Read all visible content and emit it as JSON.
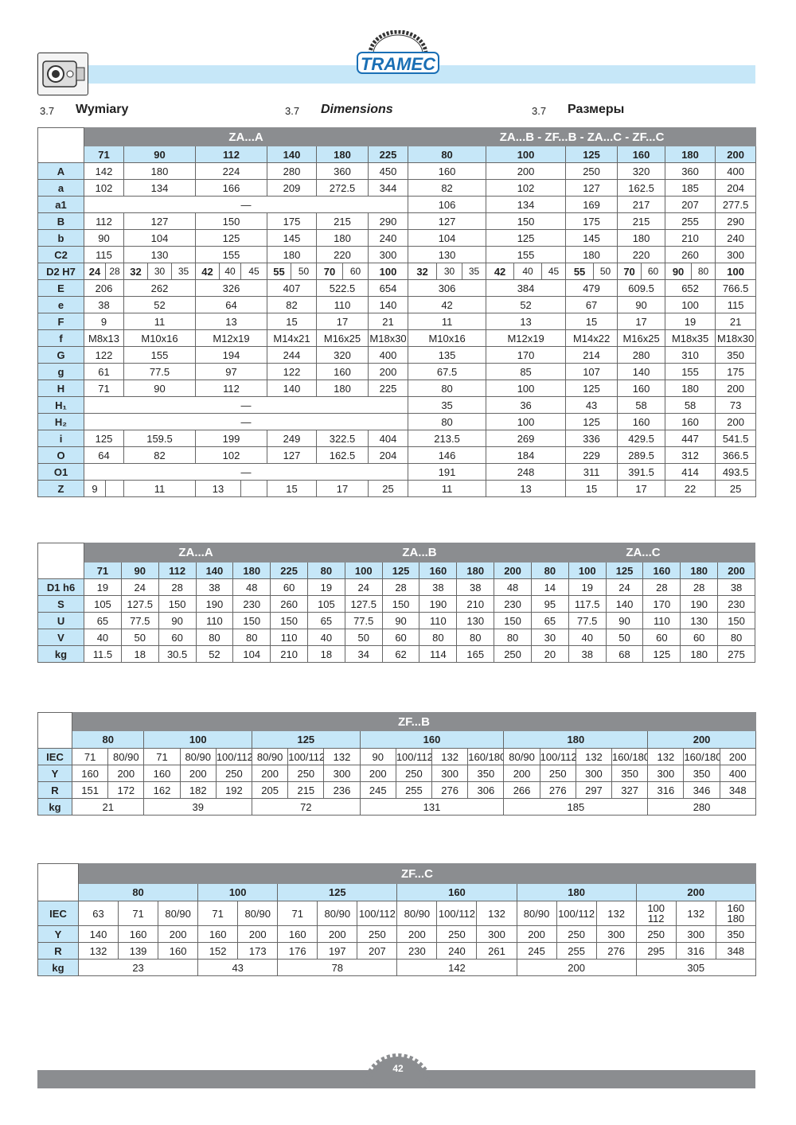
{
  "header": {
    "brand": "TRAMEC",
    "section_number": "3.7",
    "title_pl": "Wymiary",
    "title_en": "Dimensions",
    "title_ru": "Размеры"
  },
  "colors": {
    "header_gray": "#8b8d90",
    "light_blue": "#c6e7f8",
    "brand_blue": "#1a6fb5"
  },
  "table1": {
    "left_title": "ZA...A",
    "right_title": "ZA...B - ZF...B - ZA...C - ZF...C",
    "left_sizes": [
      "71",
      "90",
      "112",
      "140",
      "180",
      "225"
    ],
    "right_sizes": [
      "80",
      "100",
      "125",
      "160",
      "180",
      "200"
    ],
    "rows": [
      {
        "label": "A",
        "left": [
          "142",
          "180",
          "224",
          "280",
          "360",
          "450"
        ],
        "right": [
          "160",
          "200",
          "250",
          "320",
          "360",
          "400"
        ]
      },
      {
        "label": "a",
        "left": [
          "102",
          "134",
          "166",
          "209",
          "272.5",
          "344"
        ],
        "right": [
          "82",
          "102",
          "127",
          "162.5",
          "185",
          "204"
        ]
      },
      {
        "label": "a1",
        "left": "—",
        "right": [
          "106",
          "134",
          "169",
          "217",
          "207",
          "277.5"
        ]
      },
      {
        "label": "B",
        "left": [
          "112",
          "127",
          "150",
          "175",
          "215",
          "290"
        ],
        "right": [
          "127",
          "150",
          "175",
          "215",
          "255",
          "290"
        ]
      },
      {
        "label": "b",
        "left": [
          "90",
          "104",
          "125",
          "145",
          "180",
          "240"
        ],
        "right": [
          "104",
          "125",
          "145",
          "180",
          "210",
          "240"
        ]
      },
      {
        "label": "C2",
        "left": [
          "115",
          "130",
          "155",
          "180",
          "220",
          "300"
        ],
        "right": [
          "130",
          "155",
          "180",
          "220",
          "260",
          "300"
        ]
      },
      {
        "label": "D2 H7",
        "left": [
          [
            "24",
            "28"
          ],
          [
            "32",
            "30",
            "35"
          ],
          [
            "42",
            "40",
            "45"
          ],
          [
            "55",
            "50"
          ],
          [
            "70",
            "60"
          ],
          [
            "100"
          ]
        ],
        "right": [
          [
            "32",
            "30",
            "35"
          ],
          [
            "42",
            "40",
            "45"
          ],
          [
            "55",
            "50"
          ],
          [
            "70",
            "60"
          ],
          [
            "90",
            "80"
          ],
          [
            "100"
          ]
        ]
      },
      {
        "label": "E",
        "left": [
          "206",
          "262",
          "326",
          "407",
          "522.5",
          "654"
        ],
        "right": [
          "306",
          "384",
          "479",
          "609.5",
          "652",
          "766.5"
        ]
      },
      {
        "label": "e",
        "left": [
          "38",
          "52",
          "64",
          "82",
          "110",
          "140"
        ],
        "right": [
          "42",
          "52",
          "67",
          "90",
          "100",
          "115"
        ]
      },
      {
        "label": "F",
        "left": [
          "9",
          "11",
          "13",
          "15",
          "17",
          "21"
        ],
        "right": [
          "11",
          "13",
          "15",
          "17",
          "19",
          "21"
        ]
      },
      {
        "label": "f",
        "left": [
          "M8x13",
          "M10x16",
          "M12x19",
          "M14x21",
          "M16x25",
          "M18x30"
        ],
        "right": [
          "M10x16",
          "M12x19",
          "M14x22",
          "M16x25",
          "M18x35",
          "M18x30"
        ]
      },
      {
        "label": "G",
        "left": [
          "122",
          "155",
          "194",
          "244",
          "320",
          "400"
        ],
        "right": [
          "135",
          "170",
          "214",
          "280",
          "310",
          "350"
        ]
      },
      {
        "label": "g",
        "left": [
          "61",
          "77.5",
          "97",
          "122",
          "160",
          "200"
        ],
        "right": [
          "67.5",
          "85",
          "107",
          "140",
          "155",
          "175"
        ]
      },
      {
        "label": "H",
        "left": [
          "71",
          "90",
          "112",
          "140",
          "180",
          "225"
        ],
        "right": [
          "80",
          "100",
          "125",
          "160",
          "180",
          "200"
        ]
      },
      {
        "label": "H₁",
        "left": "—",
        "right": [
          "35",
          "36",
          "43",
          "58",
          "58",
          "73"
        ]
      },
      {
        "label": "H₂",
        "left": "—",
        "right": [
          "80",
          "100",
          "125",
          "160",
          "160",
          "200"
        ]
      },
      {
        "label": "i",
        "left": [
          "125",
          "159.5",
          "199",
          "249",
          "322.5",
          "404"
        ],
        "right": [
          "213.5",
          "269",
          "336",
          "429.5",
          "447",
          "541.5"
        ]
      },
      {
        "label": "O",
        "left": [
          "64",
          "82",
          "102",
          "127",
          "162.5",
          "204"
        ],
        "right": [
          "146",
          "184",
          "229",
          "289.5",
          "312",
          "366.5"
        ]
      },
      {
        "label": "O1",
        "left": "—",
        "right": [
          "191",
          "248",
          "311",
          "391.5",
          "414",
          "493.5"
        ]
      },
      {
        "label": "Z",
        "left": [
          [
            "9",
            ""
          ],
          "11",
          [
            "13",
            ""
          ],
          "15",
          "17",
          "25"
        ],
        "right": [
          "11",
          "13",
          "15",
          "17",
          "22",
          "25"
        ]
      }
    ]
  },
  "table2": {
    "groups": [
      {
        "title": "ZA...A",
        "sizes": [
          "71",
          "90",
          "112",
          "140",
          "180",
          "225"
        ]
      },
      {
        "title": "ZA...B",
        "sizes": [
          "80",
          "100",
          "125",
          "160",
          "180",
          "200"
        ]
      },
      {
        "title": "ZA...C",
        "sizes": [
          "80",
          "100",
          "125",
          "160",
          "180",
          "200"
        ]
      }
    ],
    "rows": [
      {
        "label": "D1 h6",
        "values": [
          "19",
          "24",
          "28",
          "38",
          "48",
          "60",
          "19",
          "24",
          "28",
          "38",
          "38",
          "48",
          "14",
          "19",
          "24",
          "28",
          "28",
          "38"
        ]
      },
      {
        "label": "S",
        "values": [
          "105",
          "127.5",
          "150",
          "190",
          "230",
          "260",
          "105",
          "127.5",
          "150",
          "190",
          "210",
          "230",
          "95",
          "117.5",
          "140",
          "170",
          "190",
          "230"
        ]
      },
      {
        "label": "U",
        "values": [
          "65",
          "77.5",
          "90",
          "110",
          "150",
          "150",
          "65",
          "77.5",
          "90",
          "110",
          "130",
          "150",
          "65",
          "77.5",
          "90",
          "110",
          "130",
          "150"
        ]
      },
      {
        "label": "V",
        "values": [
          "40",
          "50",
          "60",
          "80",
          "80",
          "110",
          "40",
          "50",
          "60",
          "80",
          "80",
          "80",
          "30",
          "40",
          "50",
          "60",
          "60",
          "80"
        ]
      },
      {
        "label": "kg",
        "values": [
          "11.5",
          "18",
          "30.5",
          "52",
          "104",
          "210",
          "18",
          "34",
          "62",
          "114",
          "165",
          "250",
          "20",
          "38",
          "68",
          "125",
          "180",
          "275"
        ]
      }
    ]
  },
  "table3": {
    "title": "ZF...B",
    "row_labels": [
      "IEC",
      "Y",
      "R",
      "kg"
    ],
    "groups": [
      {
        "size": "80",
        "iec": [
          "71",
          "80/90"
        ],
        "y": [
          "160",
          "200"
        ],
        "r": [
          "151",
          "172"
        ],
        "kg": "21"
      },
      {
        "size": "100",
        "iec": [
          "71",
          "80/90",
          "100/112"
        ],
        "y": [
          "160",
          "200",
          "250"
        ],
        "r": [
          "162",
          "182",
          "192"
        ],
        "kg": "39"
      },
      {
        "size": "125",
        "iec": [
          "80/90",
          "100/112",
          "132"
        ],
        "y": [
          "200",
          "250",
          "300"
        ],
        "r": [
          "205",
          "215",
          "236"
        ],
        "kg": "72"
      },
      {
        "size": "160",
        "iec": [
          "90",
          "100/112",
          "132",
          "160/180"
        ],
        "y": [
          "200",
          "250",
          "300",
          "350"
        ],
        "r": [
          "245",
          "255",
          "276",
          "306"
        ],
        "kg": "131"
      },
      {
        "size": "180",
        "iec": [
          "80/90",
          "100/112",
          "132",
          "160/180"
        ],
        "y": [
          "200",
          "250",
          "300",
          "350"
        ],
        "r": [
          "266",
          "276",
          "297",
          "327"
        ],
        "kg": "185"
      },
      {
        "size": "200",
        "iec": [
          "132",
          "160/180",
          "200"
        ],
        "y": [
          "300",
          "350",
          "400"
        ],
        "r": [
          "316",
          "346",
          "348"
        ],
        "kg": "280"
      }
    ]
  },
  "table4": {
    "title": "ZF...C",
    "row_labels": [
      "IEC",
      "Y",
      "R",
      "kg"
    ],
    "groups": [
      {
        "size": "80",
        "iec": [
          "63",
          "71",
          "80/90"
        ],
        "y": [
          "140",
          "160",
          "200"
        ],
        "r": [
          "132",
          "139",
          "160"
        ],
        "kg": "23"
      },
      {
        "size": "100",
        "iec": [
          "71",
          "80/90"
        ],
        "y": [
          "160",
          "200"
        ],
        "r": [
          "152",
          "173"
        ],
        "kg": "43"
      },
      {
        "size": "125",
        "iec": [
          "71",
          "80/90",
          "100/112"
        ],
        "y": [
          "160",
          "200",
          "250"
        ],
        "r": [
          "176",
          "197",
          "207"
        ],
        "kg": "78"
      },
      {
        "size": "160",
        "iec": [
          "80/90",
          "100/112",
          "132"
        ],
        "y": [
          "200",
          "250",
          "300"
        ],
        "r": [
          "230",
          "240",
          "261"
        ],
        "kg": "142"
      },
      {
        "size": "180",
        "iec": [
          "80/90",
          "100/112",
          "132"
        ],
        "y": [
          "200",
          "250",
          "300"
        ],
        "r": [
          "245",
          "255",
          "276"
        ],
        "kg": "200"
      },
      {
        "size": "200",
        "iec": [
          "100\n112",
          "132",
          "160\n180"
        ],
        "y": [
          "250",
          "300",
          "350"
        ],
        "r": [
          "295",
          "316",
          "348"
        ],
        "kg": "305"
      }
    ]
  },
  "footer": {
    "page_number": "42"
  }
}
